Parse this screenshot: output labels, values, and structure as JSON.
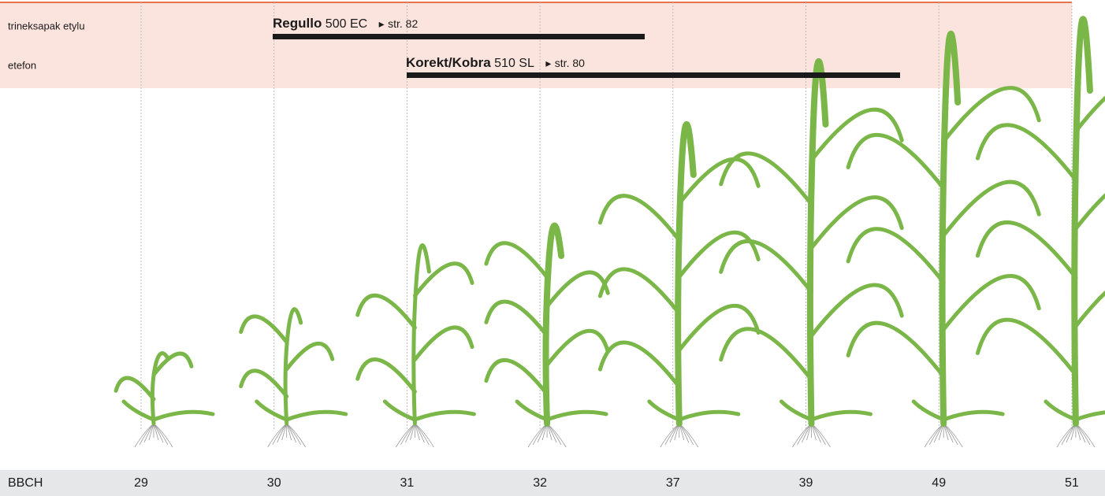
{
  "rows": [
    {
      "substance": "trineksapak etylu",
      "product": "Regullo",
      "formulation": "500 EC",
      "page": "str. 82"
    },
    {
      "substance": "etefon",
      "product": "Korekt/Kobra",
      "formulation": "510 SL",
      "page": "str. 80"
    }
  ],
  "scale": {
    "label": "BBCH",
    "stages": [
      "29",
      "30",
      "31",
      "32",
      "37",
      "39",
      "49",
      "51"
    ]
  }
}
